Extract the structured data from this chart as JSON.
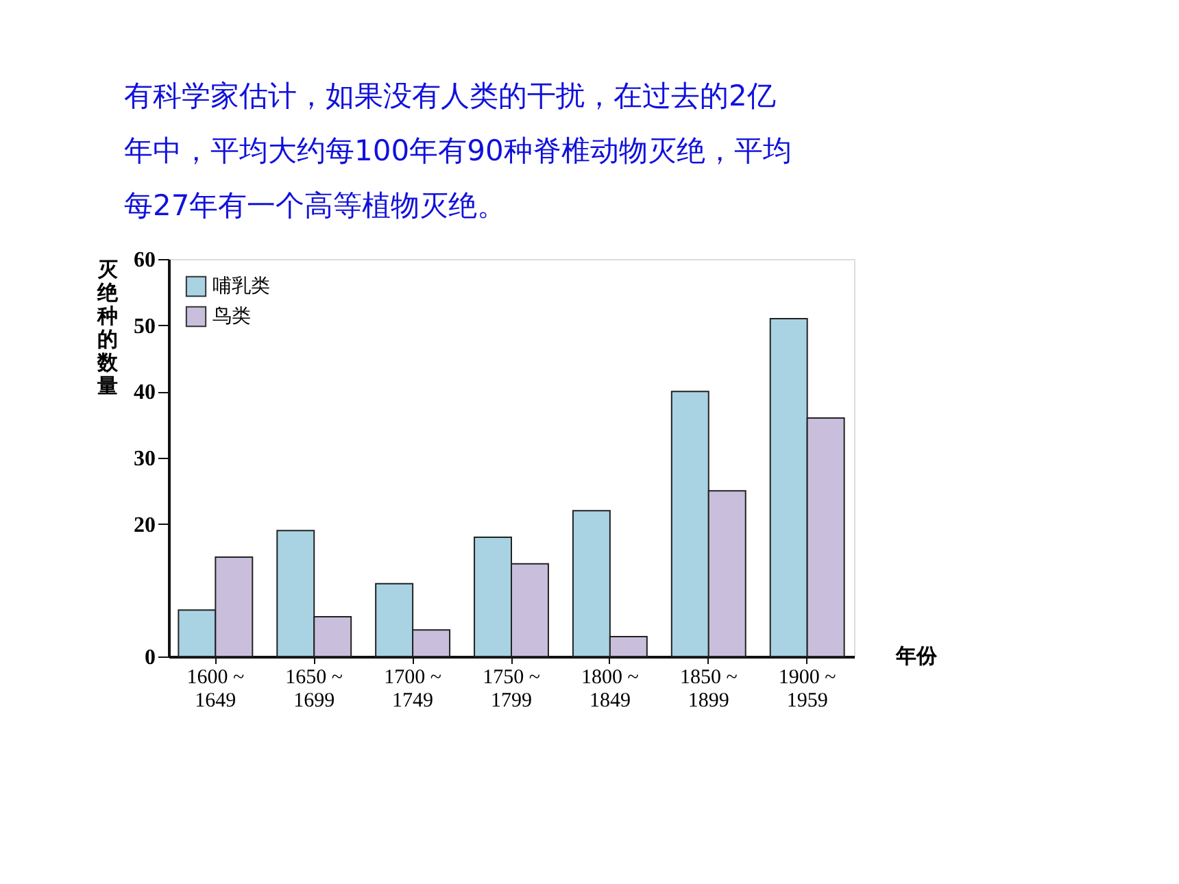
{
  "chart_data": {
    "type": "bar",
    "title": "　　有科学家估计，如果没有人类的干扰，在过去的2亿年中，平均大约每100年有90种脊椎动物灭绝，平均每27年有一个高等植物灭绝。",
    "xlabel": "年份",
    "ylabel": "灭绝种的数量",
    "categories": [
      "1600 ~ 1649",
      "1650 ~ 1699",
      "1700 ~ 1749",
      "1750 ~ 1799",
      "1800 ~ 1849",
      "1850 ~ 1899",
      "1900 ~ 1959"
    ],
    "series": [
      {
        "name": "哺乳类",
        "color": "#a9d3e3",
        "values": [
          7,
          19,
          11,
          18,
          22,
          40,
          51
        ]
      },
      {
        "name": "鸟类",
        "color": "#c9bfdc",
        "values": [
          15,
          6,
          4,
          14,
          3,
          25,
          36
        ]
      }
    ],
    "ylim": [
      0,
      60
    ],
    "yticks": [
      0,
      20,
      30,
      40,
      50,
      60
    ],
    "grid": false,
    "legend": "top left"
  }
}
